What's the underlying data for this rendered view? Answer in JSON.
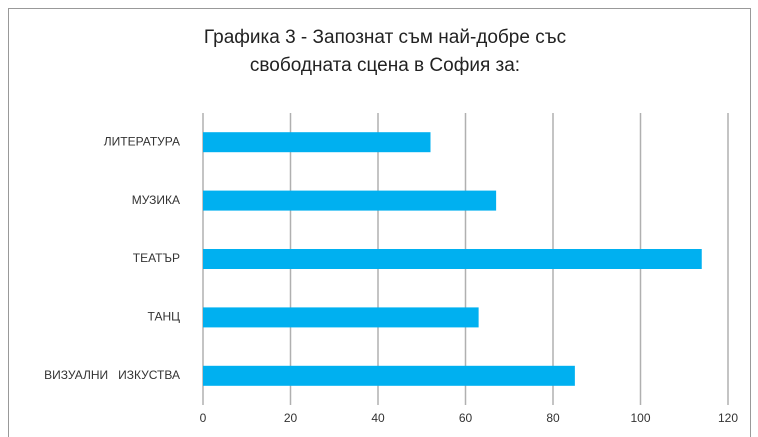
{
  "chart_data": {
    "type": "bar",
    "orientation": "horizontal",
    "title": [
      "Графика 3 - Запознат съм най-добре със",
      "свободната сцена в София за:"
    ],
    "categories": [
      "ЛИТЕРАТУРА",
      "МУЗИКА",
      "ТЕАТЪР",
      "ТАНЦ",
      "ВИЗУАЛНИ   ИЗКУСТВА"
    ],
    "values": [
      52,
      67,
      114,
      63,
      85
    ],
    "color": "#00b0f0",
    "xlim": [
      0,
      120
    ],
    "xticks": [
      0,
      20,
      40,
      60,
      80,
      100,
      120
    ],
    "grid": true
  }
}
